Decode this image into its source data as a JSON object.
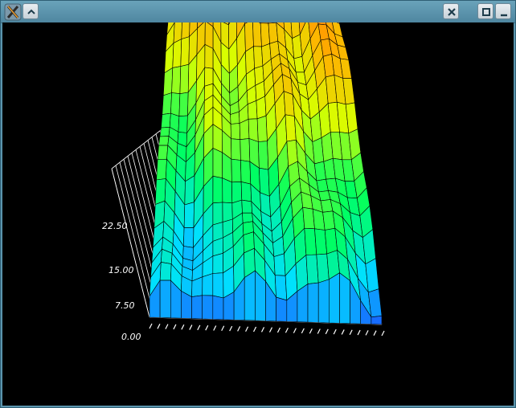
{
  "window": {
    "buttons": [
      "app-menu",
      "shade",
      "close",
      "maximize",
      "minimize"
    ]
  },
  "chart_data": {
    "type": "surface3d",
    "title": "",
    "z_tick_labels": [
      "0.00",
      "7.50",
      "15.00",
      "22.50"
    ],
    "x_tick_count": 30,
    "color_scale": [
      "#1a5cff",
      "#00e0ff",
      "#00ff60",
      "#d8ff00",
      "#ffb000",
      "#ff4400"
    ]
  }
}
